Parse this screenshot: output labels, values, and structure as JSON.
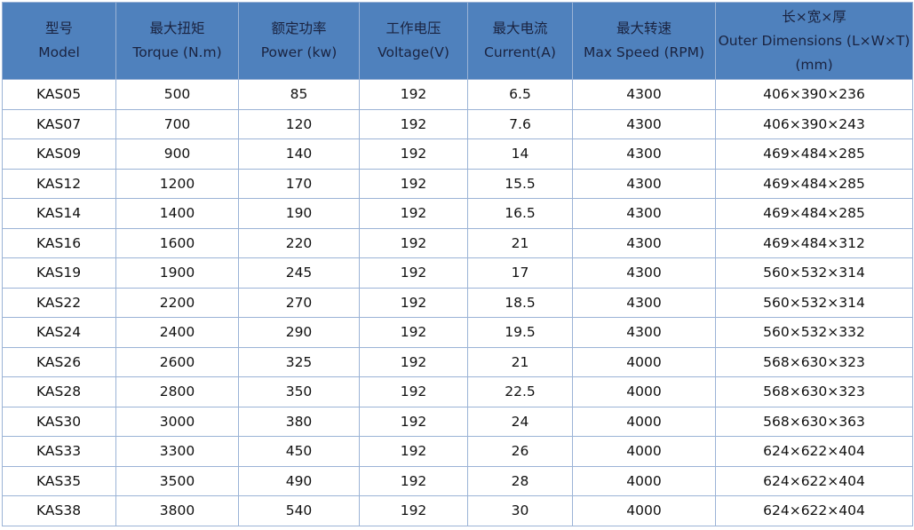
{
  "colors": {
    "header_bg": "#4f81bd",
    "border": "#9bb3d6"
  },
  "headers": [
    {
      "zh": "型号",
      "en": "Model"
    },
    {
      "zh": "最大扭矩",
      "en": "Torque (N.m)"
    },
    {
      "zh": "额定功率",
      "en": "Power (kw)"
    },
    {
      "zh": "工作电压",
      "en": "Voltage(V)"
    },
    {
      "zh": "最大电流",
      "en": "Current(A)"
    },
    {
      "zh": "最大转速",
      "en": "Max Speed (RPM)"
    },
    {
      "zh": "长×宽×厚",
      "en": "Outer Dimensions (L×W×T)",
      "unit": "(mm)"
    }
  ],
  "rows": [
    [
      "KAS05",
      "500",
      "85",
      "192",
      "6.5",
      "4300",
      "406×390×236"
    ],
    [
      "KAS07",
      "700",
      "120",
      "192",
      "7.6",
      "4300",
      "406×390×243"
    ],
    [
      "KAS09",
      "900",
      "140",
      "192",
      "14",
      "4300",
      "469×484×285"
    ],
    [
      "KAS12",
      "1200",
      "170",
      "192",
      "15.5",
      "4300",
      "469×484×285"
    ],
    [
      "KAS14",
      "1400",
      "190",
      "192",
      "16.5",
      "4300",
      "469×484×285"
    ],
    [
      "KAS16",
      "1600",
      "220",
      "192",
      "21",
      "4300",
      "469×484×312"
    ],
    [
      "KAS19",
      "1900",
      "245",
      "192",
      "17",
      "4300",
      "560×532×314"
    ],
    [
      "KAS22",
      "2200",
      "270",
      "192",
      "18.5",
      "4300",
      "560×532×314"
    ],
    [
      "KAS24",
      "2400",
      "290",
      "192",
      "19.5",
      "4300",
      "560×532×332"
    ],
    [
      "KAS26",
      "2600",
      "325",
      "192",
      "21",
      "4000",
      "568×630×323"
    ],
    [
      "KAS28",
      "2800",
      "350",
      "192",
      "22.5",
      "4000",
      "568×630×323"
    ],
    [
      "KAS30",
      "3000",
      "380",
      "192",
      "24",
      "4000",
      "568×630×363"
    ],
    [
      "KAS33",
      "3300",
      "450",
      "192",
      "26",
      "4000",
      "624×622×404"
    ],
    [
      "KAS35",
      "3500",
      "490",
      "192",
      "28",
      "4000",
      "624×622×404"
    ],
    [
      "KAS38",
      "3800",
      "540",
      "192",
      "30",
      "4000",
      "624×622×404"
    ]
  ]
}
